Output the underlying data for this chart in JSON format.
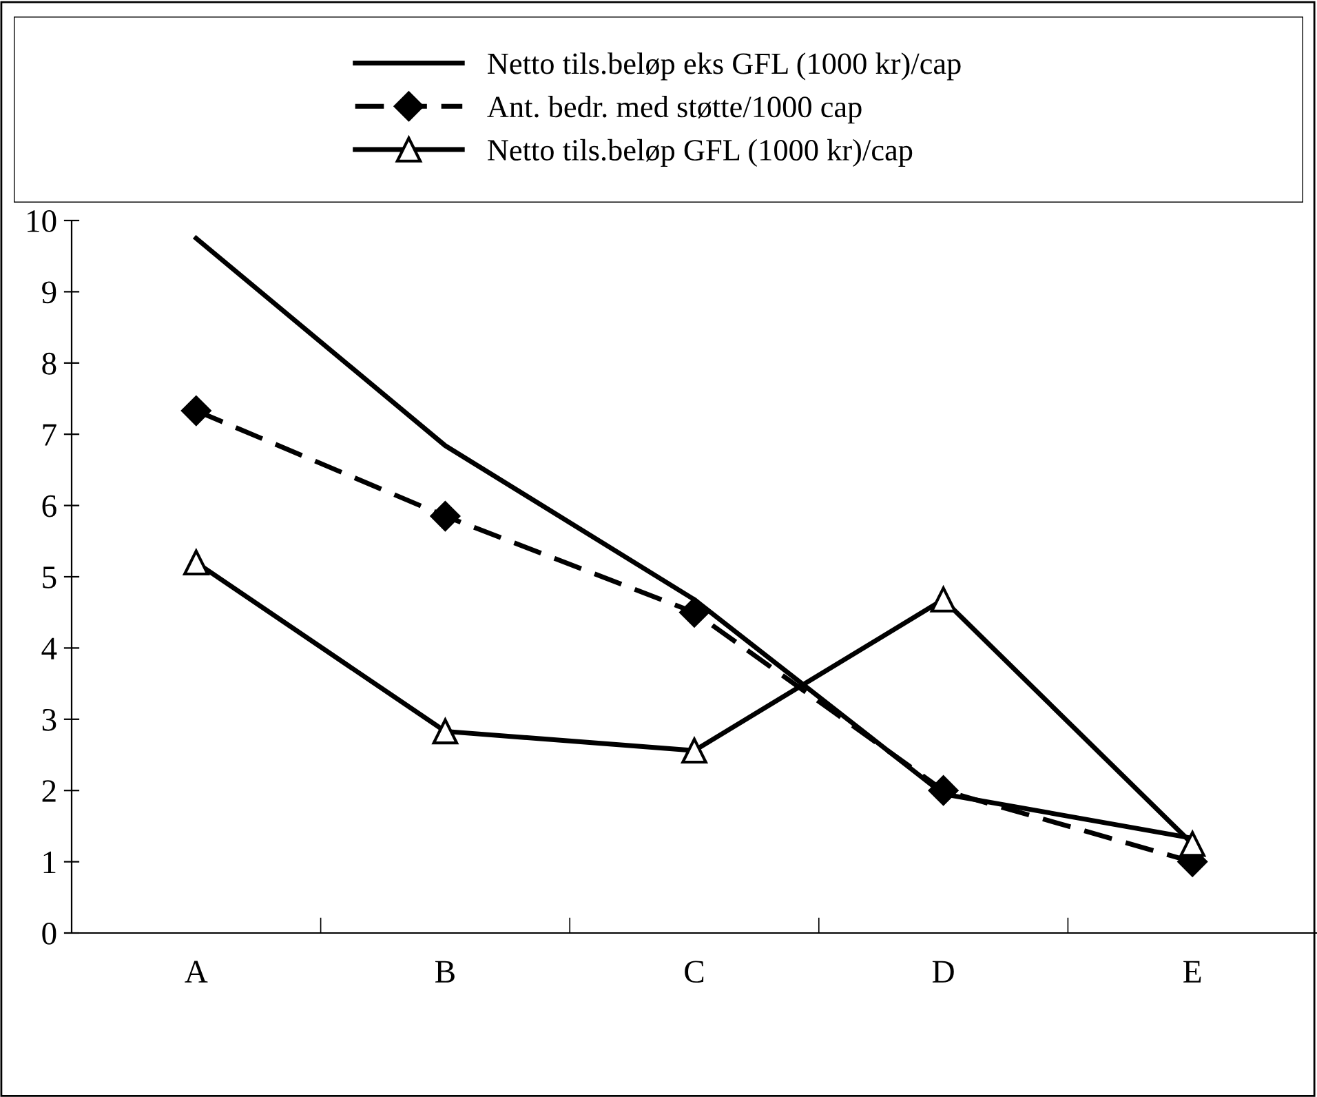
{
  "chart_data": {
    "type": "line",
    "categories": [
      "A",
      "B",
      "C",
      "D",
      "E"
    ],
    "series": [
      {
        "name": "Netto tils.beløp eks GFL (1000 kr)/cap",
        "color": "#000000",
        "marker": "none",
        "line_style": "solid",
        "values": [
          9.75,
          6.84,
          4.68,
          1.95,
          1.33
        ]
      },
      {
        "name": "Ant. bedr. med støtte/1000 cap",
        "color": "#000000",
        "marker": "diamond",
        "line_style": "dashed",
        "values": [
          7.33,
          5.85,
          4.5,
          2.0,
          1.0
        ]
      },
      {
        "name": "Netto tils.beløp GFL (1000 kr)/cap",
        "color": "#000000",
        "marker": "triangle",
        "line_style": "solid",
        "values": [
          5.2,
          2.83,
          2.56,
          4.68,
          1.25
        ]
      }
    ],
    "ylim": [
      0,
      10
    ],
    "yticks": [
      0,
      1,
      2,
      3,
      4,
      5,
      6,
      7,
      8,
      9,
      10
    ],
    "grid": false,
    "legend": "top"
  }
}
